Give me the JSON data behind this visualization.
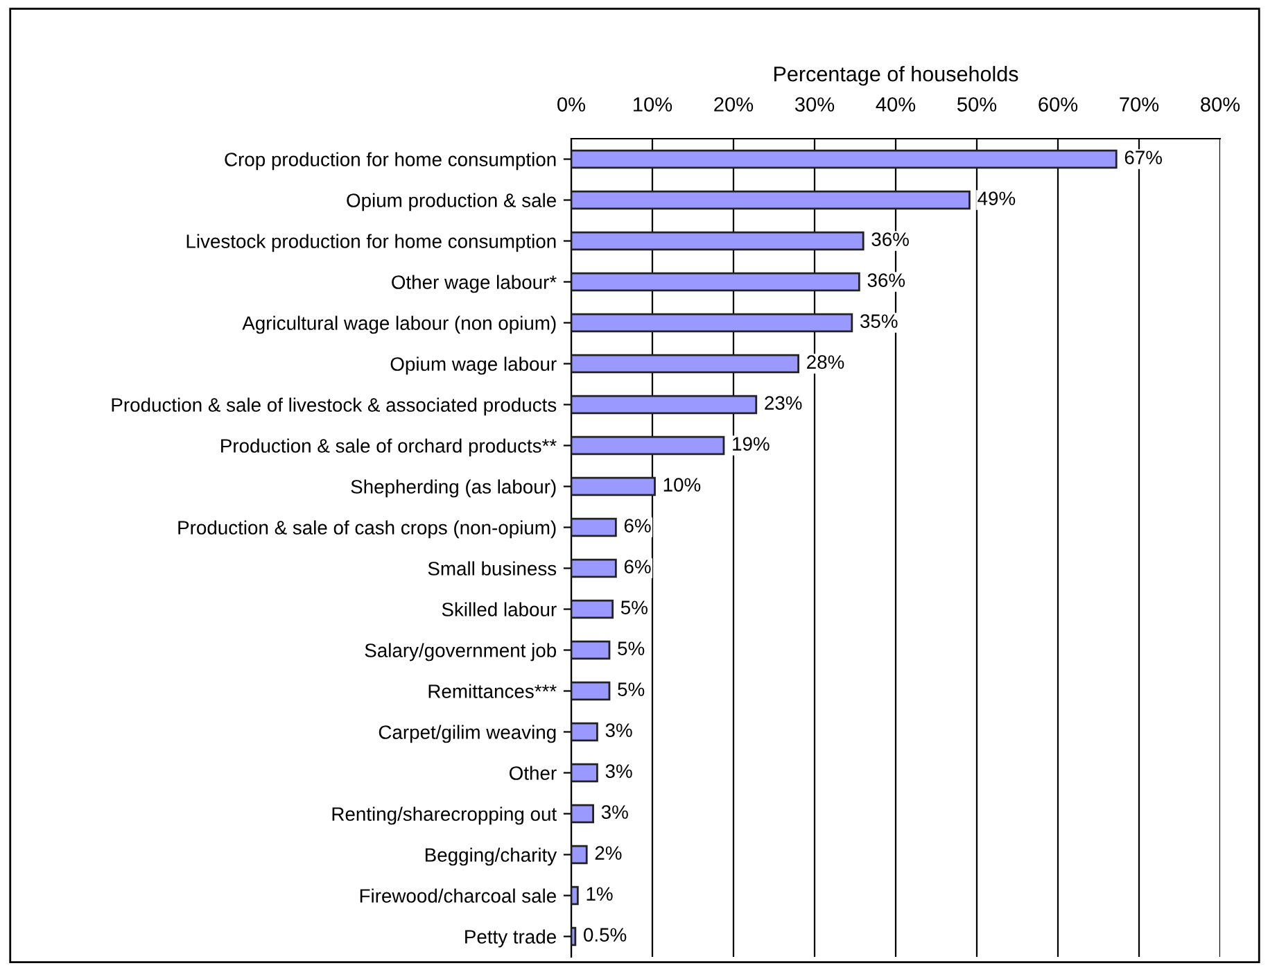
{
  "chart_data": {
    "type": "bar",
    "orientation": "horizontal",
    "xlabel": "Percentage of households",
    "categories": [
      "Crop production for home consumption",
      "Opium production & sale",
      "Livestock production for home consumption",
      "Other wage labour*",
      "Agricultural wage labour (non opium)",
      "Opium wage labour",
      "Production & sale of livestock & associated products",
      "Production & sale of orchard products**",
      "Shepherding (as labour)",
      "Production & sale of cash crops (non-opium)",
      "Small business",
      "Skilled labour",
      "Salary/government job",
      "Remittances***",
      "Carpet/gilim weaving",
      "Other",
      "Renting/sharecropping out",
      "Begging/charity",
      "Firewood/charcoal sale",
      "Petty trade"
    ],
    "values": [
      67.2,
      49.1,
      36.0,
      35.5,
      34.6,
      28.0,
      22.8,
      18.8,
      10.3,
      5.5,
      5.5,
      5.1,
      4.7,
      4.7,
      3.2,
      3.2,
      2.7,
      1.9,
      0.8,
      0.5
    ],
    "value_labels": [
      "67%",
      "49%",
      "36%",
      "36%",
      "35%",
      "28%",
      "23%",
      "19%",
      "10%",
      "6%",
      "6%",
      "5%",
      "5%",
      "5%",
      "3%",
      "3%",
      "3%",
      "2%",
      "1%",
      "0.5%"
    ],
    "color": "#9999ff",
    "xlim": [
      0,
      80
    ],
    "xticks": [
      {
        "value": 0,
        "label": "0%"
      },
      {
        "value": 10,
        "label": "10%"
      },
      {
        "value": 20,
        "label": "20%"
      },
      {
        "value": 30,
        "label": "30%"
      },
      {
        "value": 40,
        "label": "40%"
      },
      {
        "value": 50,
        "label": "50%"
      },
      {
        "value": 60,
        "label": "60%"
      },
      {
        "value": 70,
        "label": "70%"
      },
      {
        "value": 80,
        "label": "80%"
      }
    ],
    "grid": "x",
    "legend": false
  }
}
